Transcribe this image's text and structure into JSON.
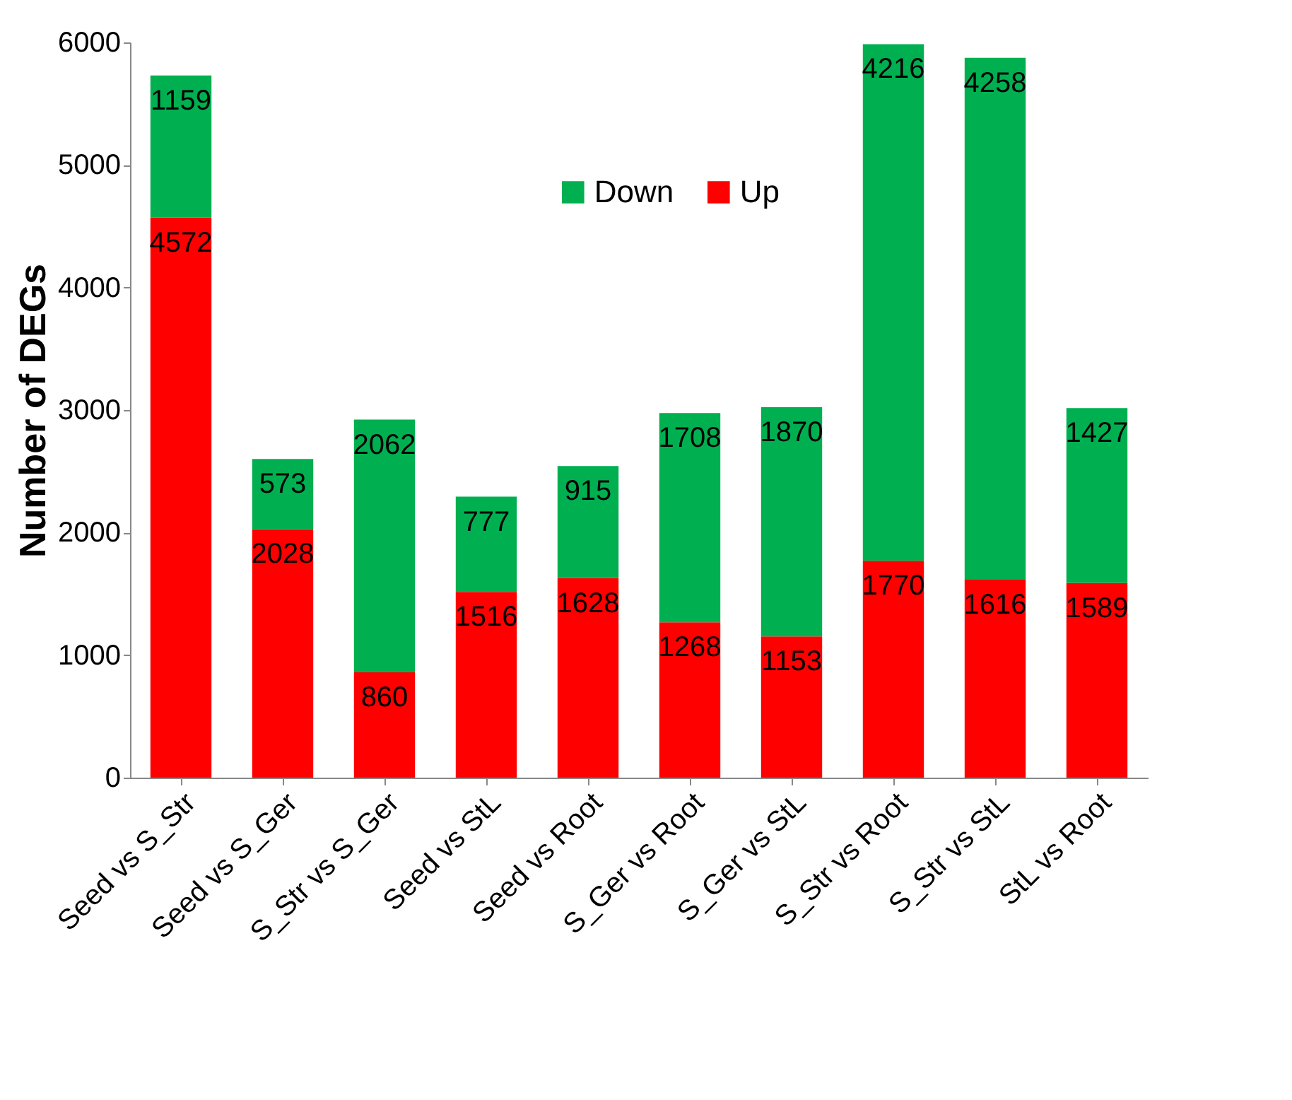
{
  "chart_data": {
    "type": "bar",
    "stacked": true,
    "ylabel": "Number of DEGs",
    "categories": [
      "Seed vs S_Str",
      "Seed vs S_Ger",
      "S_Str vs S_Ger",
      "Seed vs StL",
      "Seed vs Root",
      "S_Ger vs Root",
      "S_Ger vs StL",
      "S_Str vs Root",
      "S_Str vs StL",
      "StL vs Root"
    ],
    "series": [
      {
        "name": "Up",
        "color": "#ff0000",
        "values": [
          4572,
          2028,
          860,
          1516,
          1628,
          1268,
          1153,
          1770,
          1616,
          1589
        ]
      },
      {
        "name": "Down",
        "color": "#00b050",
        "values": [
          1159,
          573,
          2062,
          777,
          915,
          1708,
          1870,
          4216,
          4258,
          1427
        ]
      }
    ],
    "ylim": [
      0,
      6000
    ],
    "yticks": [
      0,
      1000,
      2000,
      3000,
      4000,
      5000,
      6000
    ],
    "grid": false,
    "legend": "top",
    "data_labels": true
  }
}
